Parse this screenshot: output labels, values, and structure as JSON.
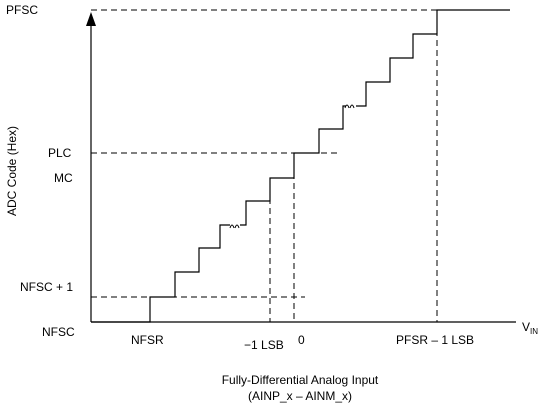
{
  "y_axis": {
    "title": "ADC Code (Hex)",
    "labels": [
      "PFSC",
      "PLC",
      "MC",
      "NFSC + 1",
      "NFSC"
    ]
  },
  "x_axis": {
    "title": "V",
    "title_sub": "IN",
    "labels": [
      "NFSR",
      "−1 LSB",
      "0",
      "PFSR – 1 LSB"
    ]
  },
  "caption": {
    "line1": "Fully-Differential Analog Input",
    "line2": "(AINP_x – AINM_x)"
  }
}
